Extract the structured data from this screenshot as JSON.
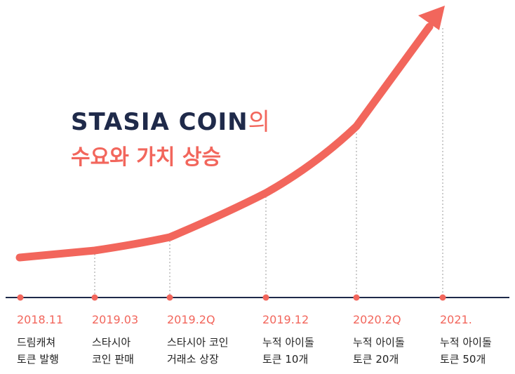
{
  "headline": {
    "line1_main": "STASIA COIN",
    "line1_suffix": "의",
    "line2": "수요와 가치 상승"
  },
  "colors": {
    "accent": "#f2665c",
    "navy": "#1f2a4a",
    "axis": "#1f2a4a",
    "text": "#222222",
    "guide": "#9a9a9a"
  },
  "milestones": [
    {
      "date": "2018.11",
      "line1": "드림캐쳐",
      "line2": "토큰 발행"
    },
    {
      "date": "2019.03",
      "line1": "스타시아",
      "line2": "코인 판매"
    },
    {
      "date": "2019.2Q",
      "line1": "스타시아 코인",
      "line2": "거래소 상장"
    },
    {
      "date": "2019.12",
      "line1": "누적 아이돌",
      "line2": "토큰 10개"
    },
    {
      "date": "2020.2Q",
      "line1": "누적 아이돌",
      "line2": "토큰 20개"
    },
    {
      "date": "2021.",
      "line1": "누적 아이돌",
      "line2": "토큰 50개"
    }
  ]
}
